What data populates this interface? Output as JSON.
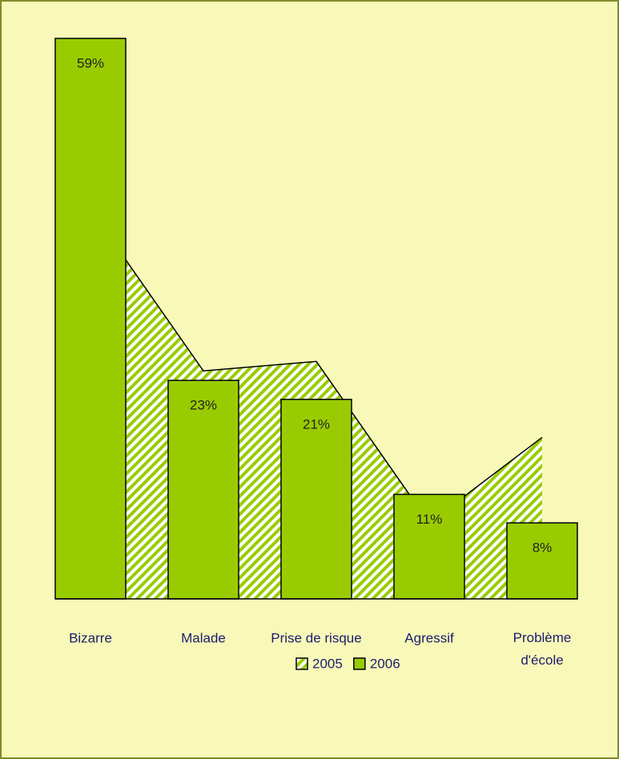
{
  "chart_data": {
    "type": "bar_area",
    "categories": [
      "Bizarre",
      "Malade",
      "Prise de risque",
      "Agressif",
      "Problème\nd'école"
    ],
    "series": [
      {
        "name": "2005",
        "type": "area",
        "color": "#99cc00",
        "values": [
          41,
          24,
          25,
          8,
          17
        ]
      },
      {
        "name": "2006",
        "type": "bar",
        "color": "#99cc00",
        "values": [
          59,
          23,
          21,
          11,
          8
        ],
        "value_labels": [
          "59%",
          "23%",
          "21%",
          "11%",
          "8%"
        ]
      }
    ]
  }
}
